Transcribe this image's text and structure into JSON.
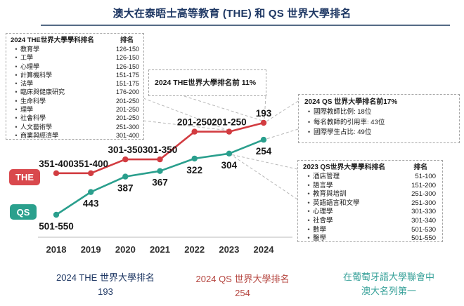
{
  "title": "澳大在泰晤士高等教育 (THE) 和 QS 世界大學排名",
  "colors": {
    "the": "#d23c41",
    "qs": "#2a9f8d",
    "title_navy": "#1f3864",
    "caption_red": "#b5453f",
    "caption_teal": "#35a098"
  },
  "boxes": {
    "the_subjects": {
      "title": "2024 THE世界大學學科排名",
      "rank_header": "排名",
      "items": [
        {
          "label": "教育學",
          "rank": "126-150"
        },
        {
          "label": "工學",
          "rank": "126-150"
        },
        {
          "label": "心理學",
          "rank": "126-150"
        },
        {
          "label": "計算機科學",
          "rank": "151-175"
        },
        {
          "label": "法學",
          "rank": "151-175"
        },
        {
          "label": "臨床與健康研究",
          "rank": "176-200"
        },
        {
          "label": "生命科學",
          "rank": "201-250"
        },
        {
          "label": "理學",
          "rank": "201-250"
        },
        {
          "label": "社會科學",
          "rank": "201-250"
        },
        {
          "label": "人文藝術學",
          "rank": "251-300"
        },
        {
          "label": "商業與經濟學",
          "rank": "301-400"
        }
      ]
    },
    "the_rank_callout": {
      "text": "2024 THE世界大學排名前 11%"
    },
    "qs_rank_callout": {
      "title": "2024 QS 世界大學排名前17%",
      "bullets": [
        "國際教師比例: 18位",
        "每名教師的引用率: 43位",
        "國際學生占比: 49位"
      ]
    },
    "qs_subjects": {
      "title": "2023 QS世界大學學科排名",
      "rank_header": "排名",
      "items": [
        {
          "label": "酒店管理",
          "rank": "51-100"
        },
        {
          "label": "語言學",
          "rank": "151-200"
        },
        {
          "label": "教育與培訓",
          "rank": "251-300"
        },
        {
          "label": "英語語言和文學",
          "rank": "251-300"
        },
        {
          "label": "心理學",
          "rank": "301-330"
        },
        {
          "label": "社會學",
          "rank": "301-340"
        },
        {
          "label": "數學",
          "rank": "501-530"
        },
        {
          "label": "醫學",
          "rank": "501-550"
        }
      ]
    }
  },
  "legend": {
    "the_label": "THE",
    "qs_label": "QS",
    "position": "left"
  },
  "chart_data": {
    "type": "line",
    "title": "澳大在泰晤士高等教育 (THE) 和 QS 世界大學排名",
    "xlabel": "",
    "ylabel": "",
    "x": [
      2018,
      2019,
      2020,
      2021,
      2022,
      2023,
      2024
    ],
    "y_inverted": true,
    "grid": false,
    "series": [
      {
        "name": "THE",
        "color": "#d23c41",
        "labels": [
          "351-400",
          "351-400",
          "301-350",
          "301-350",
          "201-250",
          "201-250",
          "193"
        ],
        "values": [
          375,
          375,
          325,
          325,
          225,
          225,
          193
        ]
      },
      {
        "name": "QS",
        "color": "#2a9f8d",
        "labels": [
          "501-550",
          "443",
          "387",
          "367",
          "322",
          "304",
          "254"
        ],
        "values": [
          525,
          443,
          387,
          367,
          322,
          304,
          254
        ]
      }
    ]
  },
  "footer": {
    "the_caption": {
      "line1": "2024 THE 世界大學排名",
      "line2": "193"
    },
    "qs_caption": {
      "line1": "2024 QS 世界大學排名",
      "line2": "254"
    },
    "note": {
      "line1": "在葡萄牙語大學聯會中",
      "line2": "澳大名列第一"
    }
  }
}
